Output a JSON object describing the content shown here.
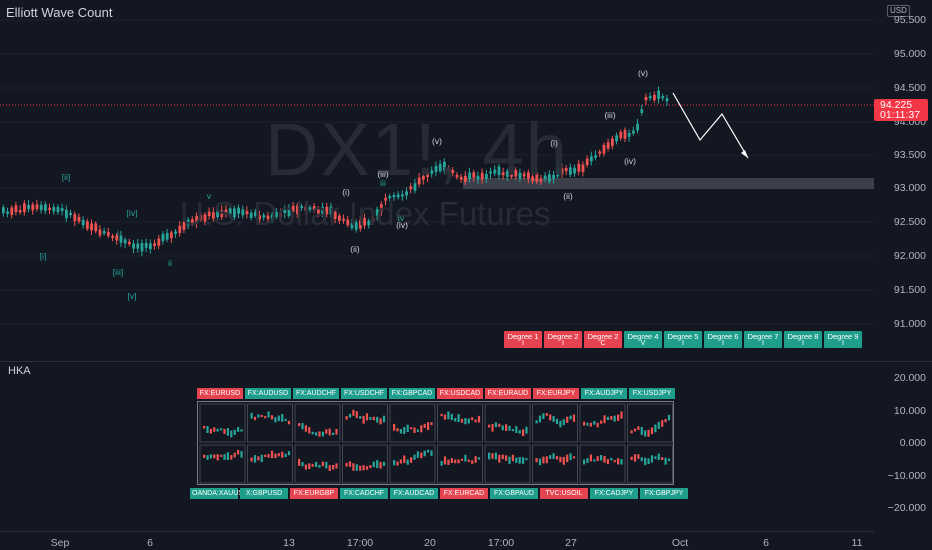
{
  "chart": {
    "title": "Elliott Wave Count",
    "currency": "USD",
    "watermark_symbol": "DX1!, 4h",
    "watermark_name": "U.S. Dollar Index Futures",
    "price_tag": "94.225",
    "countdown": "01:11:37"
  },
  "price_axis": [
    "95.500",
    "95.000",
    "94.500",
    "94.000",
    "93.500",
    "93.000",
    "92.500",
    "92.000",
    "91.500",
    "91.000"
  ],
  "indicator": {
    "name": "HKA",
    "axis": [
      "20.000",
      "10.000",
      "0.000",
      "−10.000",
      "−20.000"
    ]
  },
  "time_axis": [
    "Sep",
    "6",
    "13",
    "17:00",
    "20",
    "17:00",
    "27",
    "Oct",
    "6",
    "11"
  ],
  "degrees": [
    {
      "label": "Degree 1",
      "sub": "I",
      "color": "red"
    },
    {
      "label": "Degree 2",
      "sub": "I",
      "color": "red"
    },
    {
      "label": "Degree 2",
      "sub": "C",
      "color": "red"
    },
    {
      "label": "Degree 4",
      "sub": "V",
      "color": "green"
    },
    {
      "label": "Degree 5",
      "sub": "I",
      "color": "green"
    },
    {
      "label": "Degree 6",
      "sub": "I",
      "color": "green"
    },
    {
      "label": "Degree 7",
      "sub": "I",
      "color": "green"
    },
    {
      "label": "Degree 8",
      "sub": "I",
      "color": "green"
    },
    {
      "label": "Degree 9",
      "sub": "I",
      "color": "green"
    }
  ],
  "pairs_top": [
    {
      "label": "FX:EURUSD",
      "color": "red"
    },
    {
      "label": "FX:AUDUSD",
      "color": "green"
    },
    {
      "label": "FX:AUDCHF",
      "color": "green"
    },
    {
      "label": "FX:USDCHF",
      "color": "green"
    },
    {
      "label": "FX:GBPCAD",
      "color": "green"
    },
    {
      "label": "FX:USDCAD",
      "color": "red"
    },
    {
      "label": "FX:EURAUD",
      "color": "red"
    },
    {
      "label": "FX:EURJPY",
      "color": "red"
    },
    {
      "label": "FX:AUDJPY",
      "color": "green"
    },
    {
      "label": "FX:USDJPY",
      "color": "green"
    }
  ],
  "pairs_bottom": [
    {
      "label": "OANDA:XAUUSD",
      "color": "green"
    },
    {
      "label": "X:GBPUSD",
      "color": "green"
    },
    {
      "label": "FX:EURGBP",
      "color": "red"
    },
    {
      "label": "FX:CADCHF",
      "color": "green"
    },
    {
      "label": "FX:AUDCAD",
      "color": "green"
    },
    {
      "label": "FX:EURCAD",
      "color": "red"
    },
    {
      "label": "FX:GBPAUD",
      "color": "green"
    },
    {
      "label": "TVC:USOIL",
      "color": "red"
    },
    {
      "label": "FX:CADJPY",
      "color": "green"
    },
    {
      "label": "FX:GBPJPY",
      "color": "green"
    }
  ],
  "wave_labels": [
    "[ii]",
    "[i]",
    "[iii]",
    "[iv]",
    "[v]",
    "i",
    "ii",
    "iii",
    "iv",
    "v",
    "(i)",
    "(ii)",
    "(iii)",
    "(iv)",
    "(v)"
  ],
  "colors": {
    "up": "#26a69a",
    "down": "#ef5350",
    "bg": "#131722",
    "grid": "#1e222d"
  }
}
